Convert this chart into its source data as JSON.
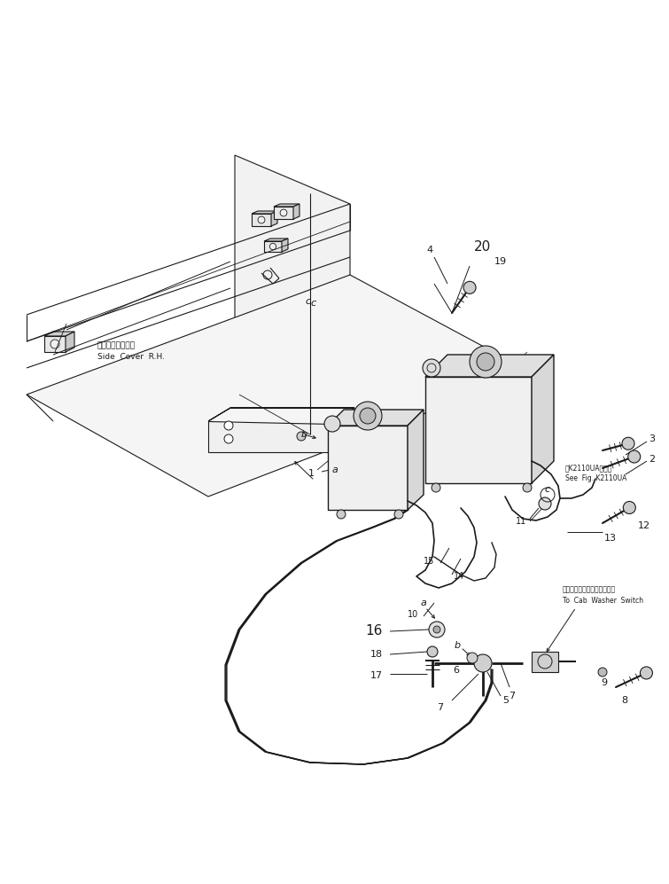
{
  "background_color": "#ffffff",
  "fig_width": 7.55,
  "fig_height": 9.97,
  "dpi": 100,
  "line_color": "#1a1a1a",
  "text_color": "#1a1a1a",
  "labels": {
    "side_cover_ja": "サイドカバー　右",
    "side_cover_en": "Side  Cover  R.H.",
    "see_fig_ja": "図K2110UA図参照",
    "see_fig_en": "See  Fig. K2110UA",
    "to_cab_ja": "キャブウィッシャスイッチヘ",
    "to_cab_en": "To  Cab  Washer  Switch"
  }
}
